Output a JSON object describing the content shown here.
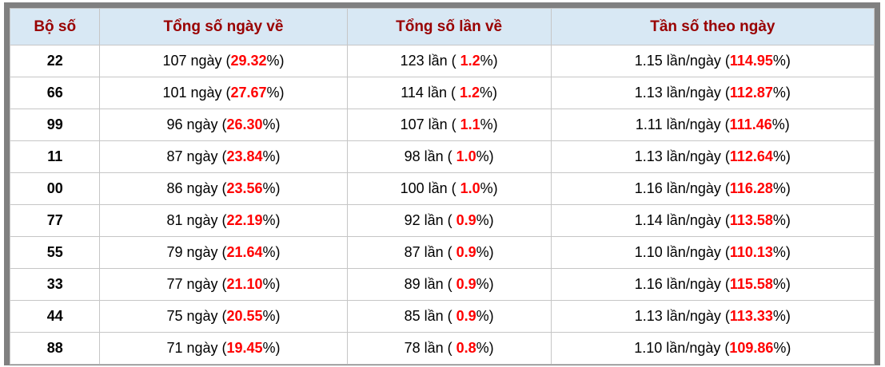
{
  "colors": {
    "frame": "#808080",
    "grid": "#c6c6c6",
    "header_bg": "#d8e8f4",
    "header_text": "#990000",
    "highlight_red": "#ff0000",
    "row_bg": "#ffffff",
    "body_text": "#000000"
  },
  "table": {
    "headers": [
      {
        "label": "Bộ số"
      },
      {
        "label": "Tổng số ngày về"
      },
      {
        "label": "Tổng số lần về"
      },
      {
        "label": "Tần số theo ngày"
      }
    ],
    "col_widths": [
      "10.4%",
      "28.6%",
      "23.6%",
      "37.4%"
    ],
    "rows": [
      {
        "pair": "22",
        "days": {
          "pre": "107 ngày (",
          "red": "29.32",
          "post": "%)"
        },
        "times": {
          "pre": "123 lần ( ",
          "red": "1.2",
          "post": "%)"
        },
        "freq": {
          "pre": "1.15 lần/ngày (",
          "red": "114.95",
          "post": "%)"
        }
      },
      {
        "pair": "66",
        "days": {
          "pre": "101 ngày (",
          "red": "27.67",
          "post": "%)"
        },
        "times": {
          "pre": "114 lần ( ",
          "red": "1.2",
          "post": "%)"
        },
        "freq": {
          "pre": "1.13 lần/ngày (",
          "red": "112.87",
          "post": "%)"
        }
      },
      {
        "pair": "99",
        "days": {
          "pre": "96 ngày (",
          "red": "26.30",
          "post": "%)"
        },
        "times": {
          "pre": "107 lần ( ",
          "red": "1.1",
          "post": "%)"
        },
        "freq": {
          "pre": "1.11 lần/ngày (",
          "red": "111.46",
          "post": "%)"
        }
      },
      {
        "pair": "11",
        "days": {
          "pre": "87 ngày (",
          "red": "23.84",
          "post": "%)"
        },
        "times": {
          "pre": "98 lần ( ",
          "red": "1.0",
          "post": "%)"
        },
        "freq": {
          "pre": "1.13 lần/ngày (",
          "red": "112.64",
          "post": "%)"
        }
      },
      {
        "pair": "00",
        "days": {
          "pre": "86 ngày (",
          "red": "23.56",
          "post": "%)"
        },
        "times": {
          "pre": "100 lần ( ",
          "red": "1.0",
          "post": "%)"
        },
        "freq": {
          "pre": "1.16 lần/ngày (",
          "red": "116.28",
          "post": "%)"
        }
      },
      {
        "pair": "77",
        "days": {
          "pre": "81 ngày (",
          "red": "22.19",
          "post": "%)"
        },
        "times": {
          "pre": "92 lần ( ",
          "red": "0.9",
          "post": "%)"
        },
        "freq": {
          "pre": "1.14 lần/ngày (",
          "red": "113.58",
          "post": "%)"
        }
      },
      {
        "pair": "55",
        "days": {
          "pre": "79 ngày (",
          "red": "21.64",
          "post": "%)"
        },
        "times": {
          "pre": "87 lần ( ",
          "red": "0.9",
          "post": "%)"
        },
        "freq": {
          "pre": "1.10 lần/ngày (",
          "red": "110.13",
          "post": "%)"
        }
      },
      {
        "pair": "33",
        "days": {
          "pre": "77 ngày (",
          "red": "21.10",
          "post": "%)"
        },
        "times": {
          "pre": "89 lần ( ",
          "red": "0.9",
          "post": "%)"
        },
        "freq": {
          "pre": "1.16 lần/ngày (",
          "red": "115.58",
          "post": "%)"
        }
      },
      {
        "pair": "44",
        "days": {
          "pre": "75 ngày (",
          "red": "20.55",
          "post": "%)"
        },
        "times": {
          "pre": "85 lần ( ",
          "red": "0.9",
          "post": "%)"
        },
        "freq": {
          "pre": "1.13 lần/ngày (",
          "red": "113.33",
          "post": "%)"
        }
      },
      {
        "pair": "88",
        "days": {
          "pre": "71 ngày (",
          "red": "19.45",
          "post": "%)"
        },
        "times": {
          "pre": "78 lần ( ",
          "red": "0.8",
          "post": "%)"
        },
        "freq": {
          "pre": "1.10 lần/ngày (",
          "red": "109.86",
          "post": "%)"
        }
      }
    ]
  }
}
